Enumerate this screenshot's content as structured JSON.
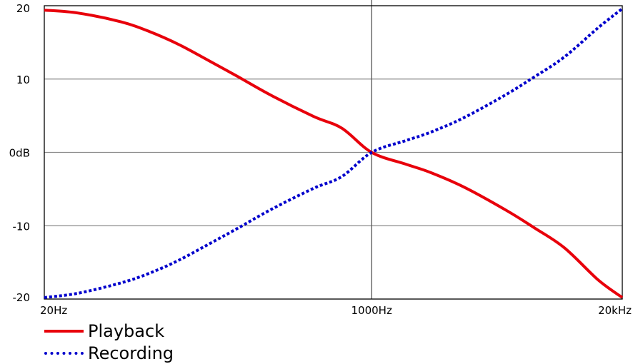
{
  "chart_data": {
    "type": "line",
    "x_scale": "log",
    "xlim": [
      20,
      20000
    ],
    "ylim": [
      -20,
      20
    ],
    "grid": true,
    "x_tick_values": [
      20,
      1000,
      20000
    ],
    "x_tick_labels": [
      "20Hz",
      "1000Hz",
      "20kHz"
    ],
    "y_tick_values": [
      20,
      10,
      0,
      -10,
      -20
    ],
    "y_tick_labels": [
      "20",
      "10",
      "0dB",
      "-10",
      "-20"
    ],
    "legend_position": "bottom-left",
    "series": [
      {
        "name": "Playback",
        "color": "#e8000b",
        "style": "solid",
        "x": [
          20,
          30,
          50,
          70,
          100,
          150,
          200,
          300,
          500,
          700,
          1000,
          1500,
          2000,
          3000,
          5000,
          7000,
          10000,
          15000,
          20000
        ],
        "y": [
          19.4,
          19.0,
          17.8,
          16.5,
          14.7,
          12.2,
          10.4,
          7.8,
          4.9,
          3.3,
          0.0,
          -1.6,
          -2.7,
          -4.7,
          -7.9,
          -10.3,
          -13.0,
          -17.4,
          -19.8
        ]
      },
      {
        "name": "Recording",
        "color": "#0000cc",
        "style": "dotted",
        "x": [
          20,
          30,
          50,
          70,
          100,
          150,
          200,
          300,
          500,
          700,
          1000,
          1500,
          2000,
          3000,
          5000,
          7000,
          10000,
          15000,
          20000
        ],
        "y": [
          -19.8,
          -19.2,
          -17.8,
          -16.5,
          -14.7,
          -12.2,
          -10.4,
          -7.8,
          -4.9,
          -3.3,
          0.0,
          1.6,
          2.7,
          4.7,
          7.9,
          10.3,
          13.0,
          17.0,
          19.6
        ]
      }
    ]
  }
}
